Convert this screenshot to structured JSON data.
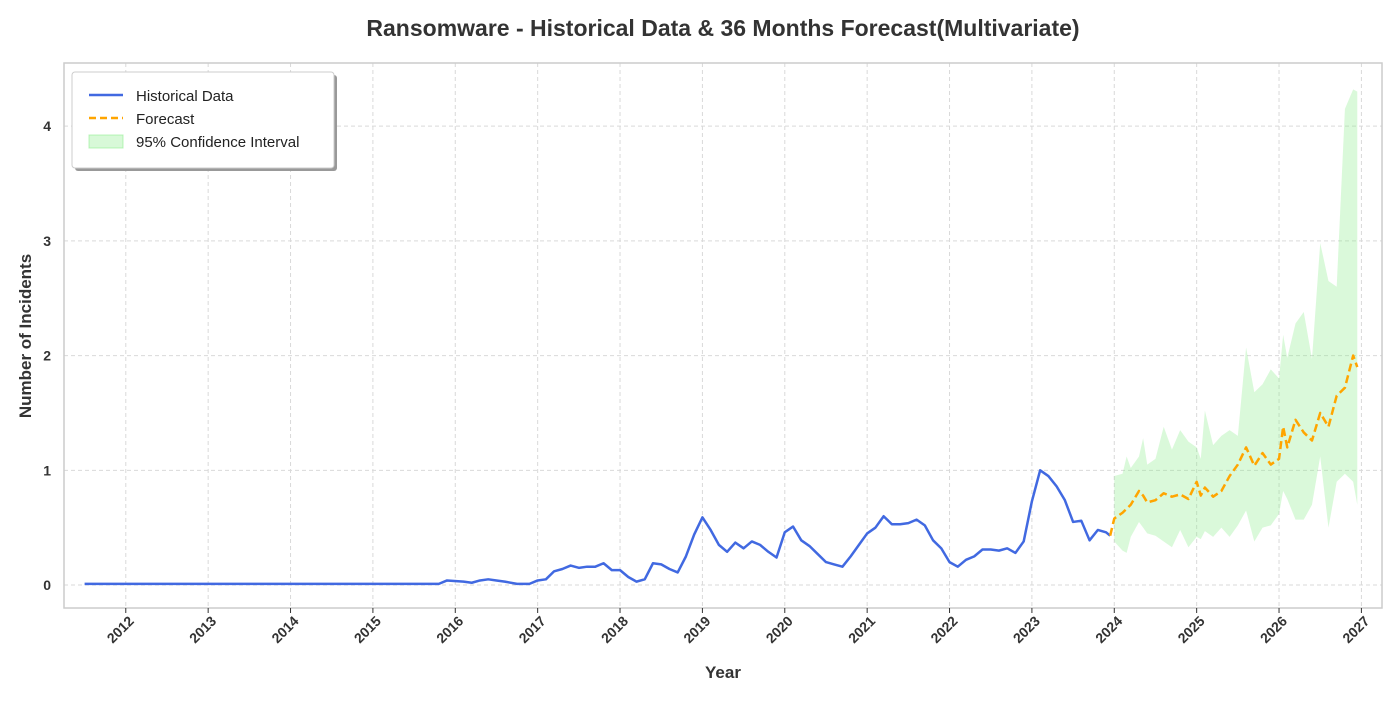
{
  "chart_data": {
    "type": "line",
    "title": "Ransomware - Historical Data & 36 Months Forecast(Multivariate)",
    "xlabel": "Year",
    "ylabel": "Number of Incidents",
    "xlim": [
      2011.25,
      2027.25
    ],
    "ylim": [
      -0.2,
      4.55
    ],
    "x_ticks": [
      2012,
      2013,
      2014,
      2015,
      2016,
      2017,
      2018,
      2019,
      2020,
      2021,
      2022,
      2023,
      2024,
      2025,
      2026,
      2027
    ],
    "y_ticks": [
      0,
      1,
      2,
      3,
      4
    ],
    "grid": true,
    "legend_position": "top-left",
    "legend": [
      "Historical Data",
      "Forecast",
      "95% Confidence Interval"
    ],
    "colors": {
      "historical": "#4169e1",
      "forecast": "#ffa500",
      "confidence": "#90ee90"
    },
    "historical": {
      "name": "Historical Data",
      "x": [
        2011.5,
        2012.0,
        2013.0,
        2014.0,
        2015.0,
        2015.8,
        2015.9,
        2016.1,
        2016.2,
        2016.3,
        2016.4,
        2016.5,
        2016.6,
        2016.75,
        2016.9,
        2017.0,
        2017.1,
        2017.2,
        2017.3,
        2017.4,
        2017.5,
        2017.6,
        2017.7,
        2017.8,
        2017.9,
        2018.0,
        2018.1,
        2018.2,
        2018.3,
        2018.4,
        2018.5,
        2018.6,
        2018.7,
        2018.8,
        2018.9,
        2019.0,
        2019.1,
        2019.2,
        2019.3,
        2019.4,
        2019.5,
        2019.6,
        2019.7,
        2019.8,
        2019.9,
        2020.0,
        2020.1,
        2020.2,
        2020.3,
        2020.4,
        2020.5,
        2020.6,
        2020.7,
        2020.8,
        2020.9,
        2021.0,
        2021.1,
        2021.2,
        2021.3,
        2021.4,
        2021.5,
        2021.6,
        2021.7,
        2021.8,
        2021.9,
        2022.0,
        2022.1,
        2022.2,
        2022.3,
        2022.4,
        2022.5,
        2022.6,
        2022.7,
        2022.8,
        2022.9,
        2023.0,
        2023.1,
        2023.2,
        2023.3,
        2023.4,
        2023.5,
        2023.6,
        2023.7,
        2023.8,
        2023.9,
        2023.95
      ],
      "y": [
        0.01,
        0.01,
        0.01,
        0.01,
        0.01,
        0.01,
        0.04,
        0.03,
        0.02,
        0.04,
        0.05,
        0.04,
        0.03,
        0.01,
        0.01,
        0.04,
        0.05,
        0.12,
        0.14,
        0.17,
        0.15,
        0.16,
        0.16,
        0.19,
        0.13,
        0.13,
        0.07,
        0.03,
        0.05,
        0.19,
        0.18,
        0.14,
        0.11,
        0.25,
        0.44,
        0.59,
        0.48,
        0.35,
        0.29,
        0.37,
        0.32,
        0.38,
        0.35,
        0.29,
        0.24,
        0.46,
        0.51,
        0.39,
        0.34,
        0.27,
        0.2,
        0.18,
        0.16,
        0.25,
        0.35,
        0.45,
        0.5,
        0.6,
        0.53,
        0.53,
        0.54,
        0.57,
        0.52,
        0.39,
        0.32,
        0.2,
        0.16,
        0.22,
        0.25,
        0.31,
        0.31,
        0.3,
        0.32,
        0.28,
        0.38,
        0.73,
        1.0,
        0.95,
        0.86,
        0.74,
        0.55,
        0.56,
        0.39,
        0.48,
        0.46,
        0.43
      ]
    },
    "forecast": {
      "name": "Forecast",
      "x": [
        2023.95,
        2024.0,
        2024.1,
        2024.2,
        2024.3,
        2024.35,
        2024.4,
        2024.5,
        2024.6,
        2024.7,
        2024.8,
        2024.9,
        2025.0,
        2025.05,
        2025.1,
        2025.2,
        2025.3,
        2025.4,
        2025.5,
        2025.6,
        2025.7,
        2025.8,
        2025.9,
        2026.0,
        2026.05,
        2026.1,
        2026.2,
        2026.3,
        2026.4,
        2026.5,
        2026.6,
        2026.7,
        2026.8,
        2026.9,
        2026.95
      ],
      "y": [
        0.43,
        0.58,
        0.63,
        0.7,
        0.82,
        0.78,
        0.72,
        0.74,
        0.8,
        0.77,
        0.79,
        0.75,
        0.9,
        0.78,
        0.85,
        0.77,
        0.82,
        0.95,
        1.05,
        1.2,
        1.04,
        1.15,
        1.05,
        1.1,
        1.38,
        1.2,
        1.44,
        1.33,
        1.26,
        1.5,
        1.38,
        1.65,
        1.72,
        2.0,
        1.9
      ]
    },
    "confidence_interval": {
      "name": "95% Confidence Interval",
      "x": [
        2024.0,
        2024.1,
        2024.15,
        2024.2,
        2024.3,
        2024.35,
        2024.4,
        2024.5,
        2024.6,
        2024.7,
        2024.8,
        2024.9,
        2025.0,
        2025.05,
        2025.1,
        2025.2,
        2025.3,
        2025.4,
        2025.5,
        2025.6,
        2025.7,
        2025.8,
        2025.9,
        2026.0,
        2026.05,
        2026.1,
        2026.2,
        2026.3,
        2026.4,
        2026.5,
        2026.6,
        2026.7,
        2026.8,
        2026.9,
        2026.95
      ],
      "upper": [
        0.95,
        0.97,
        1.12,
        1.02,
        1.12,
        1.28,
        1.05,
        1.1,
        1.38,
        1.18,
        1.35,
        1.25,
        1.2,
        1.1,
        1.52,
        1.22,
        1.3,
        1.35,
        1.3,
        2.07,
        1.68,
        1.75,
        1.88,
        1.8,
        2.18,
        1.98,
        2.28,
        2.38,
        1.97,
        2.98,
        2.65,
        2.6,
        4.15,
        4.32,
        4.3
      ],
      "lower": [
        0.38,
        0.3,
        0.28,
        0.42,
        0.55,
        0.5,
        0.45,
        0.43,
        0.38,
        0.33,
        0.48,
        0.33,
        0.42,
        0.4,
        0.47,
        0.42,
        0.5,
        0.42,
        0.52,
        0.65,
        0.38,
        0.5,
        0.52,
        0.62,
        0.82,
        0.75,
        0.57,
        0.57,
        0.7,
        1.12,
        0.5,
        0.9,
        0.97,
        0.9,
        0.7
      ]
    }
  }
}
